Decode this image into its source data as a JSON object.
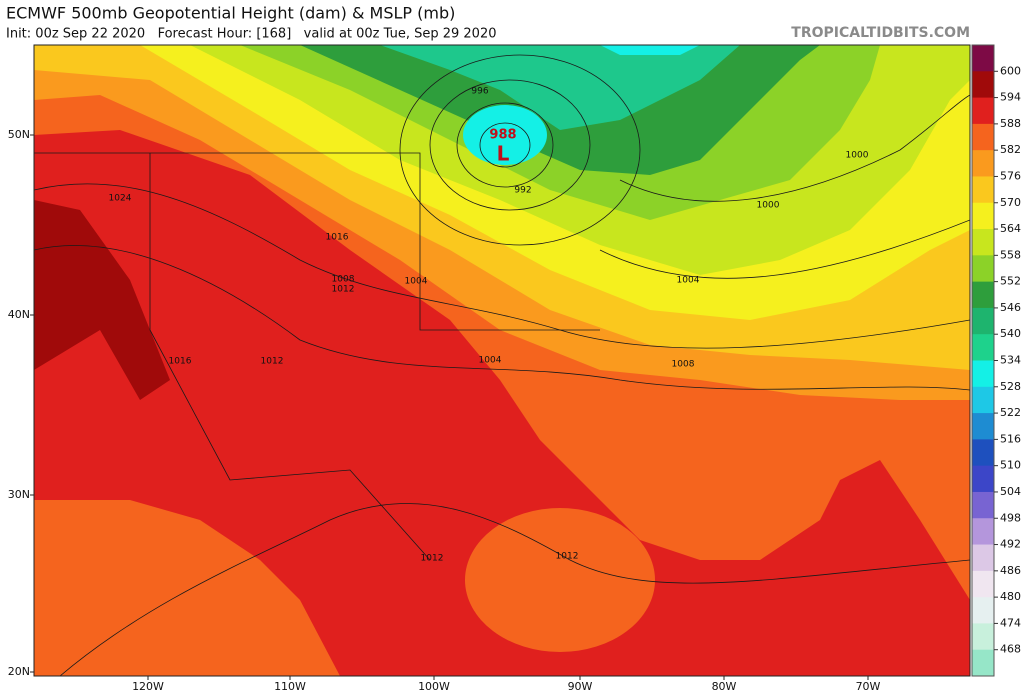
{
  "header": {
    "title": "ECMWF 500mb Geopotential Height (dam) & MSLP (mb)",
    "subtitle": "Init: 00z Sep 22 2020   Forecast Hour: [168]   valid at 00z Tue, Sep 29 2020",
    "site": "TROPICALTIDBITS.COM"
  },
  "map": {
    "latitude_labels": [
      "50N",
      "40N",
      "30N",
      "20N"
    ],
    "longitude_labels": [
      "120W",
      "110W",
      "100W",
      "90W",
      "80W",
      "70W"
    ],
    "low_center": {
      "pressure": 988,
      "symbol": "L"
    },
    "pressure_labels": [
      996,
      992,
      1000,
      1000,
      1024,
      1016,
      1008,
      1012,
      1004,
      1004,
      1004,
      1008,
      1016,
      1012,
      1012,
      1012
    ]
  },
  "colorbar": {
    "labels": [
      600,
      594,
      588,
      582,
      576,
      570,
      564,
      558,
      552,
      546,
      540,
      534,
      528,
      522,
      516,
      510,
      504,
      498,
      492,
      486,
      480,
      474,
      468
    ]
  }
}
